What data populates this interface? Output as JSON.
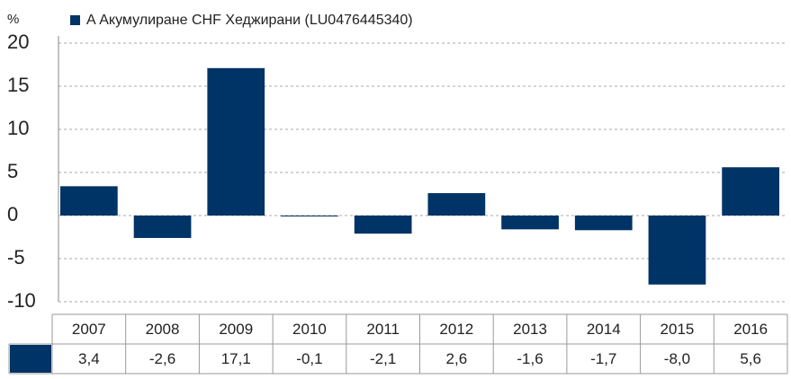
{
  "chart_data": {
    "type": "bar",
    "y_label": "%",
    "categories": [
      "2007",
      "2008",
      "2009",
      "2010",
      "2011",
      "2012",
      "2013",
      "2014",
      "2015",
      "2016"
    ],
    "series": [
      {
        "name": "A Акумулиране CHF Хеджирани (LU0476445340)",
        "color": "#003366",
        "values": [
          3.4,
          -2.6,
          17.1,
          -0.1,
          -2.1,
          2.6,
          -1.6,
          -1.7,
          -8.0,
          5.6
        ],
        "value_labels": [
          "3,4",
          "-2,6",
          "17,1",
          "-0,1",
          "-2,1",
          "2,6",
          "-1,6",
          "-1,7",
          "-8,0",
          "5,6"
        ]
      }
    ],
    "ylim": [
      -10,
      20
    ],
    "yticks": [
      -10,
      -5,
      0,
      5,
      10,
      15,
      20
    ],
    "grid": true
  }
}
